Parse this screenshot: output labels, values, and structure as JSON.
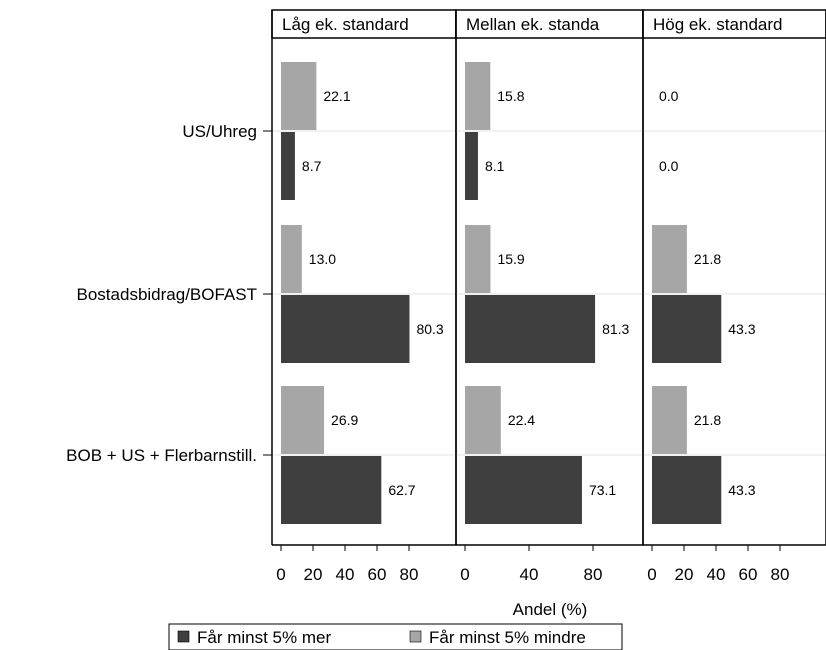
{
  "chart_data": {
    "type": "bar",
    "orientation": "horizontal",
    "categories": [
      "US/Uhreg",
      "Bostadsbidrag/BOFAST",
      "BOB + US + Flerbarnstill."
    ],
    "panels": [
      {
        "title": "Låg ek. standard",
        "xlim": [
          0,
          80
        ],
        "ticks": [
          "0",
          "20",
          "40",
          "60",
          "80"
        ]
      },
      {
        "title": "Mellan ek. standa",
        "xlim": [
          0,
          80
        ],
        "ticks": [
          "0",
          "40",
          "80"
        ]
      },
      {
        "title": "Hög ek. standard",
        "xlim": [
          0,
          80
        ],
        "ticks": [
          "0",
          "20",
          "40",
          "60",
          "80"
        ]
      }
    ],
    "series": [
      {
        "name": "Får minst 5% mindre",
        "color": "#a6a6a6",
        "values": [
          [
            22.1,
            13.0,
            26.9
          ],
          [
            15.8,
            15.9,
            22.4
          ],
          [
            0.0,
            21.8,
            21.8
          ]
        ],
        "labels": [
          [
            "22.1",
            "13.0",
            "26.9"
          ],
          [
            "15.8",
            "15.9",
            "22.4"
          ],
          [
            "0.0",
            "21.8",
            "21.8"
          ]
        ]
      },
      {
        "name": "Får minst 5% mer",
        "color": "#3f3f3f",
        "values": [
          [
            8.7,
            80.3,
            62.7
          ],
          [
            8.1,
            81.3,
            73.1
          ],
          [
            0.0,
            43.3,
            43.3
          ]
        ],
        "labels": [
          [
            "8.7",
            "80.3",
            "62.7"
          ],
          [
            "8.1",
            "81.3",
            "73.1"
          ],
          [
            "0.0",
            "43.3",
            "43.3"
          ]
        ]
      }
    ],
    "xlabel": "Andel (%)",
    "legend": {
      "placement": "bottom",
      "items": [
        {
          "label": "Får minst 5% mer",
          "color": "#3f3f3f"
        },
        {
          "label": "Får minst 5% mindre",
          "color": "#a6a6a6"
        }
      ]
    },
    "grid": true
  }
}
